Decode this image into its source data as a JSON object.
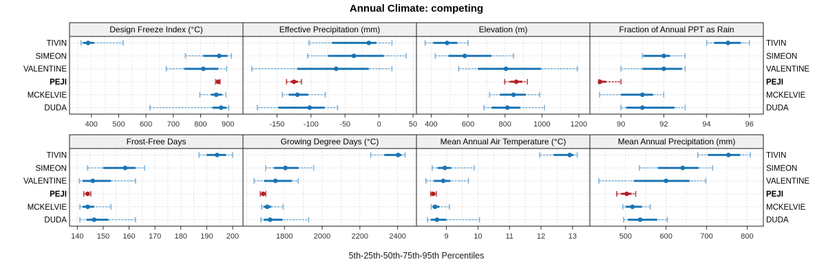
{
  "title": "Annual Climate: competing",
  "xlabel": "5th-25th-50th-75th-95th Percentiles",
  "sites": [
    "TIVIN",
    "SIMEON",
    "VALENTINE",
    "PEJI",
    "MCKELVIE",
    "DUDA"
  ],
  "highlight_site": "PEJI",
  "colors": {
    "blue": "#1b74b4",
    "blue_light": "#7fb2d8",
    "red": "#b22025",
    "red_light": "#bd4340",
    "strip_bg": "#f0f0f0",
    "panel_border": "#1a1a1a",
    "grid": "#d2d2d2",
    "tick": "#333333",
    "text": "#000000"
  },
  "chart_data": {
    "type": "dotplot-errorbar",
    "percentiles": [
      5,
      25,
      50,
      75,
      95
    ],
    "legend_note": "5th-25th-50th-75th-95th Percentiles",
    "layout": {
      "rows": 2,
      "cols": 4,
      "grid": "dotted",
      "site_labels": "left-and-right"
    },
    "panels": [
      {
        "title": "Design Freeze Index (°C)",
        "row": 0,
        "col": 0,
        "domain": [
          320,
          955
        ],
        "ticks": [
          400,
          500,
          600,
          700,
          800,
          900
        ],
        "grid_step": 50,
        "values": [
          [
            362,
            370,
            388,
            410,
            516
          ],
          [
            744,
            810,
            868,
            898,
            913
          ],
          [
            674,
            740,
            810,
            865,
            895
          ],
          [
            855,
            859,
            864,
            868,
            871
          ],
          [
            797,
            838,
            857,
            878,
            892
          ],
          [
            614,
            843,
            875,
            895,
            903
          ]
        ]
      },
      {
        "title": "Effective Precipitation (mm)",
        "row": 0,
        "col": 1,
        "domain": [
          -200,
          55
        ],
        "ticks": [
          -150,
          -100,
          -50,
          0,
          50
        ],
        "grid_step": 25,
        "values": [
          [
            -103,
            -69,
            -15,
            -4,
            19
          ],
          [
            -105,
            -75,
            -37,
            7,
            40
          ],
          [
            -187,
            -120,
            -63,
            -15,
            19
          ],
          [
            -136,
            -130,
            -125,
            -119,
            -114
          ],
          [
            -142,
            -133,
            -120,
            -104,
            -79
          ],
          [
            -179,
            -148,
            -102,
            -80,
            -61
          ]
        ]
      },
      {
        "title": "Elevation (m)",
        "row": 0,
        "col": 2,
        "domain": [
          320,
          1260
        ],
        "ticks": [
          400,
          600,
          800,
          1000,
          1200
        ],
        "grid_step": 100,
        "values": [
          [
            367,
            411,
            486,
            541,
            600
          ],
          [
            422,
            493,
            582,
            727,
            846
          ],
          [
            549,
            653,
            805,
            995,
            1192
          ],
          [
            798,
            828,
            861,
            895,
            921
          ],
          [
            716,
            772,
            846,
            913,
            988
          ],
          [
            686,
            727,
            813,
            883,
            1014
          ]
        ]
      },
      {
        "title": "Fraction of Annual PPT as Rain",
        "row": 0,
        "col": 3,
        "domain": [
          88.55,
          96.65
        ],
        "ticks": [
          90,
          92,
          94,
          96
        ],
        "grid_step": 1,
        "values": [
          [
            94.0,
            94.35,
            95.0,
            95.6,
            96.0
          ],
          [
            91.0,
            91.05,
            92.0,
            92.3,
            93.0
          ],
          [
            90.0,
            91.0,
            92.0,
            92.85,
            93.0
          ],
          [
            88.97,
            88.99,
            89.02,
            89.3,
            90.0
          ],
          [
            89.0,
            90.0,
            91.0,
            91.5,
            92.0
          ],
          [
            90.0,
            90.25,
            91.0,
            92.5,
            93.0
          ]
        ]
      },
      {
        "title": "Frost-Free Days",
        "row": 1,
        "col": 0,
        "domain": [
          137,
          204
        ],
        "ticks": [
          140,
          150,
          160,
          170,
          180,
          190,
          200
        ],
        "grid_step": 5,
        "values": [
          [
            187,
            190,
            194,
            197.5,
            200
          ],
          [
            144,
            150,
            158.5,
            162.5,
            166
          ],
          [
            140.8,
            142,
            146,
            153,
            162.5
          ],
          [
            142.5,
            143.2,
            144,
            144.6,
            145.2
          ],
          [
            141,
            142,
            144,
            146.5,
            153
          ],
          [
            141,
            143.5,
            146.5,
            152,
            162.5
          ]
        ]
      },
      {
        "title": "Growing Degree Days (°C)",
        "row": 1,
        "col": 1,
        "domain": [
          1580,
          2500
        ],
        "ticks": [
          1800,
          2000,
          2200,
          2400
        ],
        "grid_step": 100,
        "values": [
          [
            2257,
            2330,
            2403,
            2422,
            2440
          ],
          [
            1700,
            1745,
            1805,
            1875,
            1955
          ],
          [
            1639,
            1692,
            1752,
            1840,
            1873
          ],
          [
            1672,
            1680,
            1687,
            1694,
            1701
          ],
          [
            1679,
            1690,
            1709,
            1730,
            1793
          ],
          [
            1675,
            1690,
            1724,
            1790,
            1928
          ]
        ]
      },
      {
        "title": "Mean Annual Air Temperature (°C)",
        "row": 1,
        "col": 2,
        "domain": [
          8.05,
          13.55
        ],
        "ticks": [
          9,
          10,
          11,
          12,
          13
        ],
        "grid_step": 0.5,
        "values": [
          [
            11.96,
            12.4,
            12.91,
            13.04,
            13.15
          ],
          [
            8.55,
            8.72,
            8.95,
            9.15,
            9.88
          ],
          [
            8.35,
            8.6,
            8.9,
            9.13,
            9.7
          ],
          [
            8.5,
            8.54,
            8.58,
            8.63,
            8.68
          ],
          [
            8.52,
            8.56,
            8.64,
            8.78,
            9.1
          ],
          [
            8.4,
            8.5,
            8.7,
            9.0,
            10.05
          ]
        ]
      },
      {
        "title": "Mean Annual Precipitation (mm)",
        "row": 1,
        "col": 3,
        "domain": [
          412,
          840
        ],
        "ticks": [
          500,
          600,
          700,
          800
        ],
        "grid_step": 50,
        "values": [
          [
            678,
            703,
            754,
            783,
            808
          ],
          [
            534,
            580,
            641,
            681,
            715
          ],
          [
            434,
            520,
            600,
            658,
            698
          ],
          [
            478,
            490,
            503,
            515,
            525
          ],
          [
            493,
            500,
            517,
            540,
            561
          ],
          [
            495,
            506,
            536,
            578,
            603
          ]
        ]
      }
    ]
  }
}
